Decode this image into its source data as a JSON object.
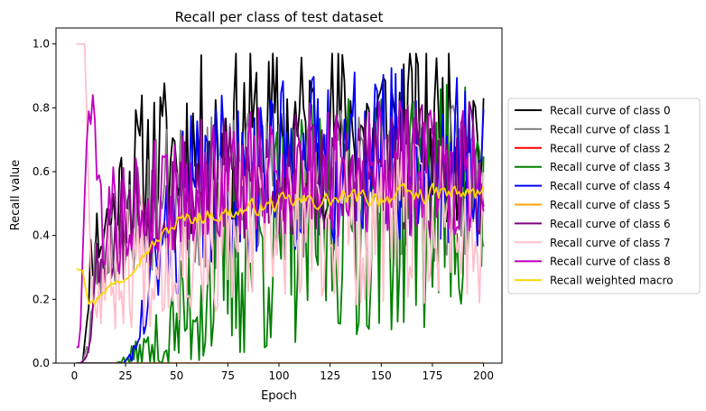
{
  "chart_data": {
    "type": "line",
    "title": "Recall per class of test dataset",
    "xlabel": "Epoch",
    "ylabel": "Recall value",
    "xlim": [
      -9,
      209
    ],
    "ylim": [
      0,
      1.05
    ],
    "xticks": [
      0,
      25,
      50,
      75,
      100,
      125,
      150,
      175,
      200
    ],
    "yticks": [
      0.0,
      0.2,
      0.4,
      0.6,
      0.8,
      1.0
    ],
    "xtick_labels": [
      "0",
      "25",
      "50",
      "75",
      "100",
      "125",
      "150",
      "175",
      "200"
    ],
    "ytick_labels": [
      "0.0",
      "0.2",
      "0.4",
      "0.6",
      "0.8",
      "1.0"
    ],
    "grid": false,
    "legend_position": "outside-right",
    "series": [
      {
        "name": "Recall curve of class 0",
        "color": "#000000",
        "style": "noisy",
        "keypoints": [
          [
            1,
            0
          ],
          [
            4,
            0
          ],
          [
            6,
            0.1
          ],
          [
            8,
            0.35
          ],
          [
            12,
            0.4
          ],
          [
            18,
            0.45
          ],
          [
            25,
            0.55
          ],
          [
            35,
            0.62
          ],
          [
            50,
            0.66
          ],
          [
            75,
            0.7
          ],
          [
            100,
            0.72
          ],
          [
            150,
            0.74
          ],
          [
            200,
            0.72
          ]
        ],
        "amp": [
          [
            1,
            0
          ],
          [
            6,
            0.02
          ],
          [
            10,
            0.08
          ],
          [
            25,
            0.14
          ],
          [
            60,
            0.17
          ],
          [
            200,
            0.17
          ]
        ],
        "maxv": 0.97,
        "minv": 0.0,
        "seed": 11
      },
      {
        "name": "Recall curve of class 1",
        "color": "#808080",
        "style": "noisy",
        "keypoints": [
          [
            1,
            0
          ],
          [
            4,
            0
          ],
          [
            7,
            0.05
          ],
          [
            10,
            0.3
          ],
          [
            15,
            0.35
          ],
          [
            25,
            0.45
          ],
          [
            50,
            0.52
          ],
          [
            100,
            0.55
          ],
          [
            150,
            0.58
          ],
          [
            200,
            0.55
          ]
        ],
        "amp": [
          [
            1,
            0
          ],
          [
            7,
            0.02
          ],
          [
            12,
            0.08
          ],
          [
            40,
            0.14
          ],
          [
            200,
            0.15
          ]
        ],
        "maxv": 0.85,
        "minv": 0.0,
        "seed": 23
      },
      {
        "name": "Recall curve of class 2",
        "color": "#ff0000",
        "style": "flat",
        "keypoints": [
          [
            1,
            0
          ],
          [
            200,
            0
          ]
        ],
        "amp": [
          [
            1,
            0
          ],
          [
            200,
            0
          ]
        ],
        "maxv": 0,
        "minv": 0,
        "seed": 3
      },
      {
        "name": "Recall curve of class 3",
        "color": "#008000",
        "style": "noisy",
        "keypoints": [
          [
            1,
            0
          ],
          [
            20,
            0
          ],
          [
            30,
            0.02
          ],
          [
            45,
            0.06
          ],
          [
            60,
            0.22
          ],
          [
            80,
            0.33
          ],
          [
            100,
            0.4
          ],
          [
            125,
            0.45
          ],
          [
            150,
            0.48
          ],
          [
            175,
            0.5
          ],
          [
            200,
            0.52
          ]
        ],
        "amp": [
          [
            1,
            0
          ],
          [
            22,
            0
          ],
          [
            30,
            0.03
          ],
          [
            45,
            0.08
          ],
          [
            65,
            0.18
          ],
          [
            90,
            0.22
          ],
          [
            200,
            0.24
          ]
        ],
        "maxv": 0.92,
        "minv": 0.0,
        "seed": 37
      },
      {
        "name": "Recall curve of class 4",
        "color": "#0000ff",
        "style": "noisy",
        "keypoints": [
          [
            1,
            0
          ],
          [
            24,
            0
          ],
          [
            30,
            0.05
          ],
          [
            38,
            0.25
          ],
          [
            45,
            0.4
          ],
          [
            55,
            0.5
          ],
          [
            75,
            0.58
          ],
          [
            100,
            0.62
          ],
          [
            150,
            0.65
          ],
          [
            200,
            0.62
          ]
        ],
        "amp": [
          [
            1,
            0
          ],
          [
            25,
            0
          ],
          [
            30,
            0.03
          ],
          [
            40,
            0.12
          ],
          [
            55,
            0.16
          ],
          [
            200,
            0.17
          ]
        ],
        "maxv": 0.93,
        "minv": 0.0,
        "seed": 41
      },
      {
        "name": "Recall curve of class 5",
        "color": "#ffa500",
        "style": "flat",
        "keypoints": [
          [
            1,
            0
          ],
          [
            200,
            0
          ]
        ],
        "amp": [
          [
            1,
            0
          ],
          [
            200,
            0
          ]
        ],
        "maxv": 0,
        "minv": 0,
        "seed": 5
      },
      {
        "name": "Recall curve of class 6",
        "color": "#800080",
        "style": "noisy",
        "keypoints": [
          [
            1,
            0
          ],
          [
            5,
            0
          ],
          [
            8,
            0.12
          ],
          [
            12,
            0.35
          ],
          [
            20,
            0.4
          ],
          [
            35,
            0.5
          ],
          [
            60,
            0.55
          ],
          [
            100,
            0.58
          ],
          [
            150,
            0.6
          ],
          [
            200,
            0.6
          ]
        ],
        "amp": [
          [
            1,
            0
          ],
          [
            6,
            0.02
          ],
          [
            12,
            0.08
          ],
          [
            30,
            0.12
          ],
          [
            200,
            0.13
          ]
        ],
        "maxv": 0.9,
        "minv": 0.0,
        "seed": 53
      },
      {
        "name": "Recall curve of class 7",
        "color": "#ffc0cb",
        "style": "noisy",
        "keypoints": [
          [
            1,
            1.0
          ],
          [
            5,
            1.0
          ],
          [
            7,
            0.55
          ],
          [
            9,
            0.18
          ],
          [
            14,
            0.25
          ],
          [
            25,
            0.32
          ],
          [
            50,
            0.38
          ],
          [
            100,
            0.42
          ],
          [
            150,
            0.44
          ],
          [
            200,
            0.45
          ]
        ],
        "amp": [
          [
            1,
            0
          ],
          [
            5,
            0
          ],
          [
            9,
            0.05
          ],
          [
            20,
            0.12
          ],
          [
            50,
            0.15
          ],
          [
            200,
            0.16
          ]
        ],
        "maxv": 1.0,
        "minv": 0.0,
        "seed": 67
      },
      {
        "name": "Recall curve of class 8",
        "color": "#c000c0",
        "style": "noisy",
        "keypoints": [
          [
            1,
            0
          ],
          [
            3,
            0.1
          ],
          [
            5,
            0.55
          ],
          [
            7,
            0.8
          ],
          [
            10,
            0.82
          ],
          [
            11,
            0.55
          ],
          [
            14,
            0.45
          ],
          [
            25,
            0.46
          ],
          [
            50,
            0.55
          ],
          [
            100,
            0.6
          ],
          [
            150,
            0.62
          ],
          [
            200,
            0.6
          ]
        ],
        "amp": [
          [
            1,
            0
          ],
          [
            5,
            0.02
          ],
          [
            11,
            0.05
          ],
          [
            14,
            0.09
          ],
          [
            30,
            0.12
          ],
          [
            200,
            0.13
          ]
        ],
        "maxv": 0.89,
        "minv": 0.05,
        "seed": 79
      },
      {
        "name": "Recall weighted macro",
        "color": "#ffd700",
        "style": "smooth",
        "keypoints": [
          [
            1,
            0.295
          ],
          [
            4,
            0.295
          ],
          [
            7,
            0.2
          ],
          [
            10,
            0.19
          ],
          [
            14,
            0.23
          ],
          [
            20,
            0.25
          ],
          [
            25,
            0.27
          ],
          [
            30,
            0.32
          ],
          [
            40,
            0.38
          ],
          [
            50,
            0.44
          ],
          [
            60,
            0.46
          ],
          [
            75,
            0.47
          ],
          [
            100,
            0.5
          ],
          [
            125,
            0.51
          ],
          [
            150,
            0.52
          ],
          [
            175,
            0.53
          ],
          [
            200,
            0.53
          ]
        ],
        "amp": [
          [
            1,
            0
          ],
          [
            5,
            0.01
          ],
          [
            20,
            0.012
          ],
          [
            50,
            0.02
          ],
          [
            200,
            0.025
          ]
        ],
        "maxv": 0.6,
        "minv": 0.18,
        "seed": 97
      }
    ]
  }
}
